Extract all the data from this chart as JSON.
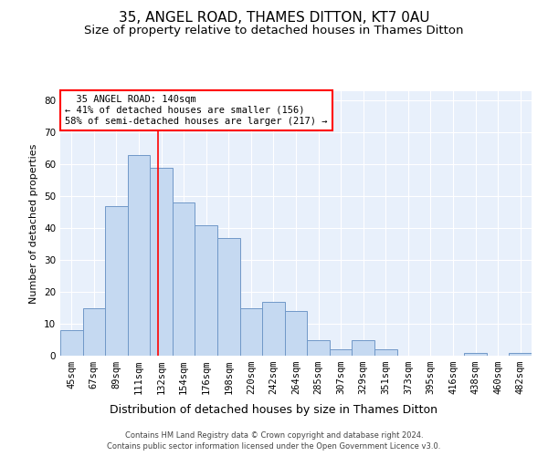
{
  "title": "35, ANGEL ROAD, THAMES DITTON, KT7 0AU",
  "subtitle": "Size of property relative to detached houses in Thames Ditton",
  "xlabel": "Distribution of detached houses by size in Thames Ditton",
  "ylabel": "Number of detached properties",
  "bin_labels": [
    "45sqm",
    "67sqm",
    "89sqm",
    "111sqm",
    "132sqm",
    "154sqm",
    "176sqm",
    "198sqm",
    "220sqm",
    "242sqm",
    "264sqm",
    "285sqm",
    "307sqm",
    "329sqm",
    "351sqm",
    "373sqm",
    "395sqm",
    "416sqm",
    "438sqm",
    "460sqm",
    "482sqm"
  ],
  "bar_values": [
    8,
    15,
    47,
    63,
    59,
    48,
    41,
    37,
    15,
    17,
    14,
    5,
    2,
    5,
    2,
    0,
    0,
    0,
    1,
    0,
    1
  ],
  "bar_color": "#c5d9f1",
  "bar_edge_color": "#7098c8",
  "annotation_text": "  35 ANGEL ROAD: 140sqm\n← 41% of detached houses are smaller (156)\n58% of semi-detached houses are larger (217) →",
  "annotation_box_color": "white",
  "annotation_box_edge_color": "red",
  "ylim": [
    0,
    83
  ],
  "yticks": [
    0,
    10,
    20,
    30,
    40,
    50,
    60,
    70,
    80
  ],
  "footer1": "Contains HM Land Registry data © Crown copyright and database right 2024.",
  "footer2": "Contains public sector information licensed under the Open Government Licence v3.0.",
  "background_color": "#e8f0fb",
  "grid_color": "white",
  "title_fontsize": 11,
  "subtitle_fontsize": 9.5,
  "tick_fontsize": 7.5,
  "ylabel_fontsize": 8,
  "xlabel_fontsize": 9,
  "footer_fontsize": 6,
  "annot_fontsize": 7.5
}
